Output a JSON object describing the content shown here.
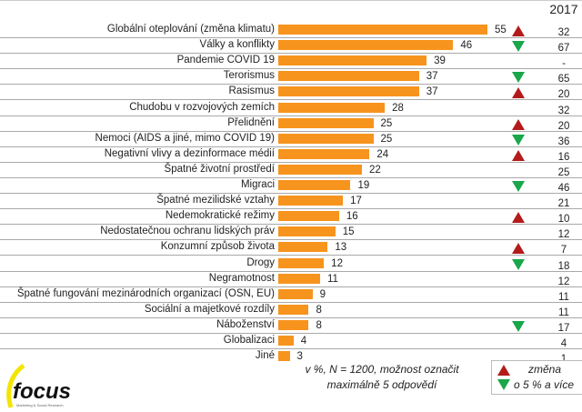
{
  "chart_data": {
    "type": "bar",
    "orientation": "horizontal",
    "categories": [
      "Globální oteplování (změna klimatu)",
      "Války a konflikty",
      "Pandemie COVID 19",
      "Terorismus",
      "Rasismus",
      "Chudobu v rozvojových zemích",
      "Přelidnění",
      "Nemoci (AIDS a jiné, mimo COVID 19)",
      "Negativní vlivy a dezinformace médií",
      "Špatné životní prostředí",
      "Migraci",
      "Špatné mezilidské vztahy",
      "Nedemokratické režimy",
      "Nedostatečnou ochranu lidských práv",
      "Konzumní způsob života",
      "Drogy",
      "Negramotnost",
      "Špatné fungování mezinárodních organizací (OSN, EU)",
      "Sociální a majetkové rozdíly",
      "Náboženství",
      "Globalizaci",
      "Jiné"
    ],
    "values": [
      55,
      46,
      39,
      37,
      37,
      28,
      25,
      25,
      24,
      22,
      19,
      17,
      16,
      15,
      13,
      12,
      11,
      9,
      8,
      8,
      4,
      3
    ],
    "comparison_header": "2017",
    "comparison_values": [
      "32",
      "67",
      "-",
      "65",
      "20",
      "32",
      "20",
      "36",
      "16",
      "25",
      "46",
      "21",
      "10",
      "12",
      "7",
      "18",
      "12",
      "11",
      "11",
      "17",
      "4",
      "1"
    ],
    "change": [
      "up",
      "down",
      "",
      "down",
      "up",
      "",
      "up",
      "down",
      "up",
      "",
      "down",
      "",
      "up",
      "",
      "up",
      "down",
      "",
      "",
      "",
      "down",
      "",
      ""
    ],
    "bar_color": "#f7941d",
    "up_color": "#b31b1b",
    "down_color": "#1aa64a",
    "note_line1": "v %, N = 1200, možnost označit",
    "note_line2": "maximálně 5 odpovědí",
    "legend": {
      "line1": "změna",
      "line2": "o 5 % a více",
      "placement": "bottom-right"
    },
    "xlim": [
      0,
      55
    ]
  },
  "logo": {
    "text": "focus",
    "subtext": "Marketing & Social Research"
  }
}
